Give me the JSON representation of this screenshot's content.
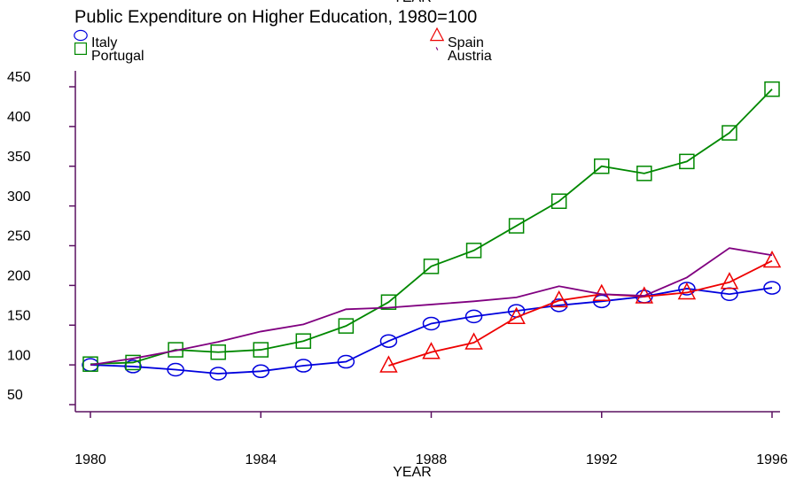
{
  "chart_data": {
    "type": "line",
    "title": "Public Expenditure on Higher Education, 1980=100",
    "x_label": "YEAR",
    "x": [
      1980,
      1981,
      1982,
      1983,
      1984,
      1985,
      1986,
      1987,
      1988,
      1989,
      1990,
      1991,
      1992,
      1993,
      1994,
      1995,
      1996
    ],
    "series": [
      {
        "name": "Italy",
        "color": "#0000dd",
        "marker": "circle",
        "values": [
          100,
          98,
          94,
          89,
          92,
          99,
          104,
          130,
          152,
          161,
          168,
          175,
          180,
          186,
          196,
          189,
          197
        ]
      },
      {
        "name": "Spain",
        "color": "#ee0000",
        "marker": "triangle",
        "values": [
          null,
          null,
          null,
          null,
          null,
          null,
          null,
          99,
          116,
          128,
          160,
          181,
          189,
          186,
          191,
          204,
          231
        ]
      },
      {
        "name": "Portugal",
        "color": "#008800",
        "marker": "square",
        "values": [
          101,
          103,
          119,
          116,
          119,
          130,
          149,
          179,
          224,
          244,
          275,
          306,
          350,
          341,
          356,
          392,
          447
        ]
      },
      {
        "name": "Austria",
        "color": "#800080",
        "marker": "none",
        "values": [
          100,
          108,
          118,
          129,
          142,
          151,
          170,
          172,
          176,
          180,
          185,
          199,
          189,
          187,
          210,
          247,
          238
        ]
      }
    ],
    "xlim": [
      1980,
      1996
    ],
    "xticks": [
      1980,
      1984,
      1988,
      1992,
      1996
    ],
    "ylim": [
      50,
      450
    ],
    "yticks": [
      50,
      100,
      150,
      200,
      250,
      300,
      350,
      400,
      450
    ]
  }
}
